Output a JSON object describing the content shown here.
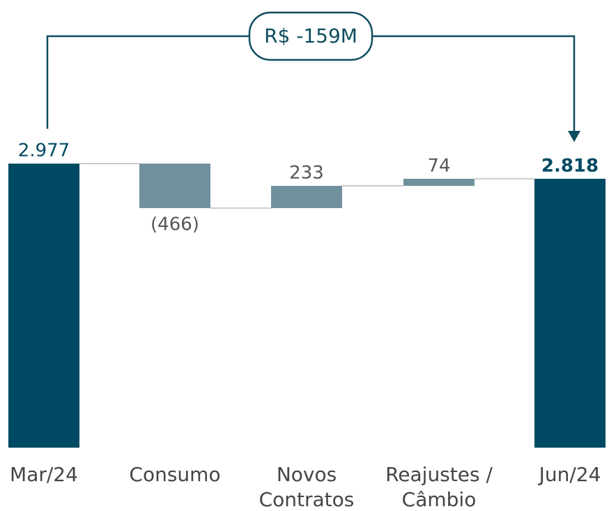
{
  "chart_data": {
    "type": "waterfall",
    "categories": [
      "Mar/24",
      "Consumo",
      "Novos Contratos",
      "Reajustes / Câmbio",
      "Jun/24"
    ],
    "values": [
      2977,
      -466,
      233,
      74,
      2818
    ],
    "value_labels": [
      "2.977",
      "(466)",
      "233",
      "74",
      "2.818"
    ],
    "total_color": "#004a63",
    "delta_color": "#6f909c",
    "annotation": "R$ -159M"
  }
}
